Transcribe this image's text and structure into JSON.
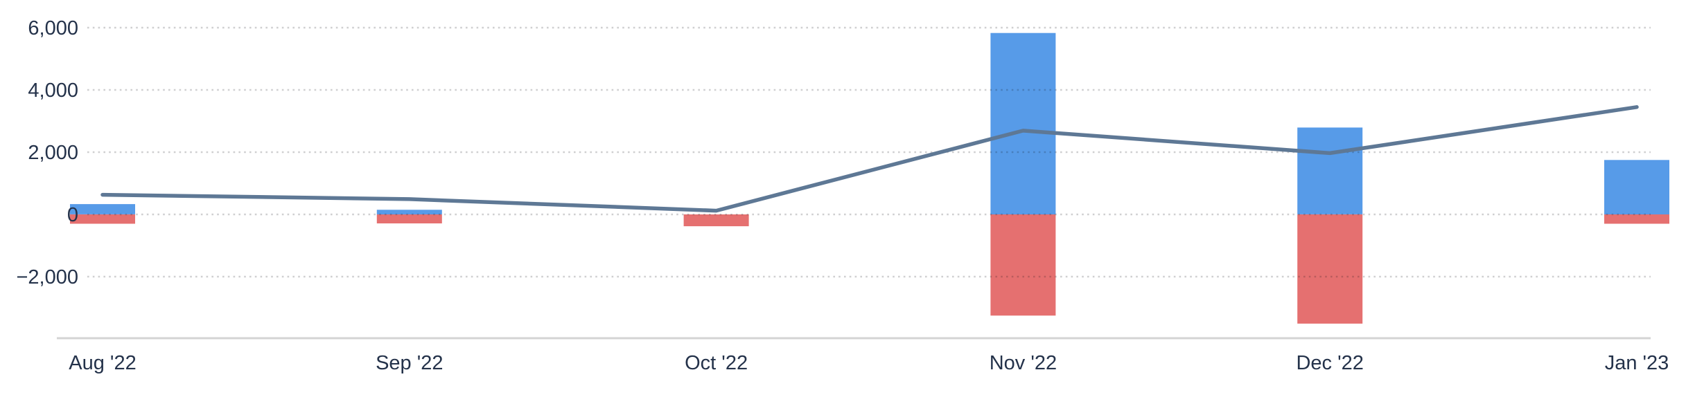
{
  "chart_data": {
    "type": "bar",
    "title": "",
    "xlabel": "",
    "ylabel": "",
    "categories": [
      "Aug '22",
      "Sep '22",
      "Oct '22",
      "Nov '22",
      "Dec '22",
      "Jan '23"
    ],
    "series": [
      {
        "name": "positive-bar-series",
        "kind": "bar",
        "stack": "total",
        "color": "#579be8",
        "values": [
          330,
          150,
          0,
          5830,
          2790,
          1750
        ]
      },
      {
        "name": "negative-bar-series",
        "kind": "bar",
        "stack": "total",
        "color": "#e57070",
        "values": [
          -300,
          -290,
          -380,
          -3250,
          -3510,
          -300
        ]
      },
      {
        "name": "trend-line-series",
        "kind": "line",
        "color": "#5e7895",
        "values": [
          630,
          490,
          120,
          2690,
          1970,
          3450
        ]
      }
    ],
    "yticks": [
      6000,
      4000,
      2000,
      0,
      -2000
    ],
    "ytick_labels": [
      "6,000",
      "4,000",
      "2,000",
      "0",
      "−2,000"
    ],
    "ylim": [
      -4000,
      6900
    ],
    "grid": "dotted-horizontal",
    "legend": "none",
    "colors": {
      "grid_dots": "#cdcdcd",
      "axis_line": "#d4d4d4",
      "tick_text": "#24324a",
      "background": "#ffffff"
    }
  }
}
